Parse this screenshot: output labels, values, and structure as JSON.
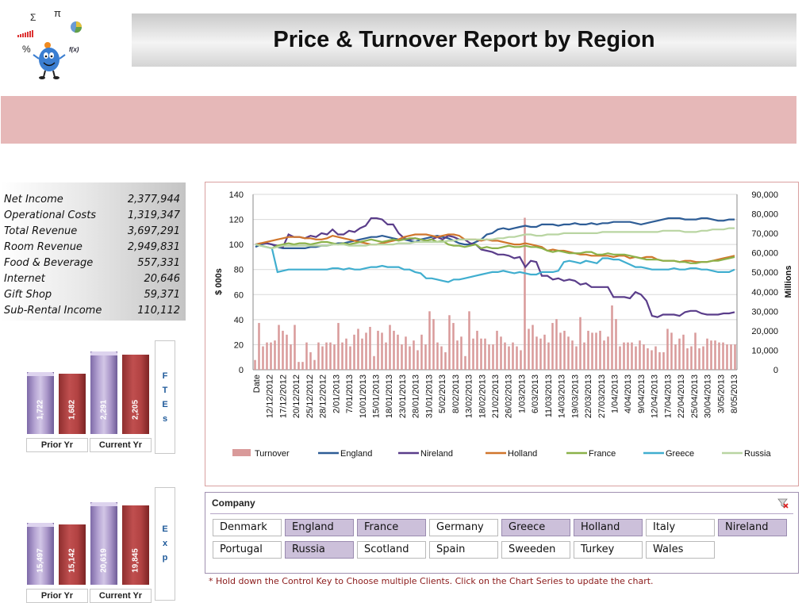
{
  "title": "Price & Turnover Report by Region",
  "logo": {
    "symbols": [
      "Σ",
      "π",
      "%",
      "f(x)"
    ]
  },
  "metrics": [
    {
      "label": "Net Income",
      "value": "2,377,944"
    },
    {
      "label": "Operational Costs",
      "value": "1,319,347"
    },
    {
      "label": "Total Revenue",
      "value": "3,697,291"
    },
    {
      "label": "Room Revenue",
      "value": "2,949,831"
    },
    {
      "label": "Food & Beverage",
      "value": "557,331"
    },
    {
      "label": "Internet",
      "value": "20,646"
    },
    {
      "label": "Gift Shop",
      "value": "59,371"
    },
    {
      "label": "Sub-Rental Income",
      "value": "110,112"
    }
  ],
  "ftes": {
    "side_letters": [
      "F",
      "T",
      "E",
      "s"
    ],
    "prior_label": "Prior Yr",
    "current_label": "Current Yr",
    "bars": [
      {
        "value": 1722,
        "label": "1,722",
        "color": "purple"
      },
      {
        "value": 1682,
        "label": "1,682",
        "color": "red"
      },
      {
        "value": 2291,
        "label": "2,291",
        "color": "purple"
      },
      {
        "value": 2205,
        "label": "2,205",
        "color": "red"
      }
    ]
  },
  "exp": {
    "side_letters": [
      "E",
      "x",
      "p"
    ],
    "prior_label": "Prior Yr",
    "current_label": "Current Yr",
    "bars": [
      {
        "value": 15497,
        "label": "15,497",
        "color": "purple"
      },
      {
        "value": 15142,
        "label": "15,142",
        "color": "red"
      },
      {
        "value": 20619,
        "label": "20,619",
        "color": "purple"
      },
      {
        "value": 19845,
        "label": "19,845",
        "color": "red"
      }
    ]
  },
  "chart_data": {
    "type": "line",
    "ylabel": "$ 000s",
    "y2label": "Millions",
    "ylim": [
      0,
      140
    ],
    "y_ticks": [
      0,
      20,
      40,
      60,
      80,
      100,
      120,
      140
    ],
    "y2lim": [
      0,
      90000
    ],
    "y2_ticks": [
      "0",
      "10,000",
      "20,000",
      "30,000",
      "40,000",
      "50,000",
      "60,000",
      "70,000",
      "80,000",
      "90,000"
    ],
    "x_labels": [
      "Date",
      "12/12/2012",
      "17/12/2012",
      "20/12/2012",
      "25/12/2012",
      "28/12/2012",
      "2/01/2013",
      "7/01/2013",
      "10/01/2013",
      "15/01/2013",
      "18/01/2013",
      "23/01/2013",
      "28/01/2013",
      "31/01/2013",
      "5/02/2013",
      "8/02/2013",
      "13/02/2013",
      "18/02/2013",
      "21/02/2013",
      "26/02/2013",
      "1/03/2013",
      "6/03/2013",
      "11/03/2013",
      "14/03/2013",
      "19/03/2013",
      "22/03/2013",
      "27/03/2013",
      "1/04/2013",
      "4/04/2013",
      "9/04/2013",
      "12/04/2013",
      "17/04/2013",
      "22/04/2013",
      "25/04/2013",
      "30/04/2013",
      "3/05/2013",
      "8/05/2013"
    ],
    "grid": true,
    "legend_position": "bottom",
    "series": [
      {
        "name": "Turnover",
        "type": "bar",
        "axis": "right",
        "color": "#d99a9a",
        "values": [
          5000,
          24000,
          12000,
          14000,
          14000,
          15000,
          23000,
          20000,
          18000,
          13000,
          23000,
          4000,
          4000,
          14000,
          9000,
          5000,
          14000,
          12000,
          14000,
          14000,
          13000,
          24000,
          14000,
          16000,
          12000,
          18000,
          21000,
          16000,
          19000,
          22000,
          7000,
          20000,
          19000,
          14000,
          23000,
          20000,
          18000,
          13000,
          17000,
          12000,
          15000,
          10000,
          18000,
          13000,
          30000,
          26000,
          14000,
          12000,
          9000,
          28000,
          24000,
          15000,
          17000,
          7000,
          30000,
          16000,
          20000,
          16000,
          16000,
          13000,
          13000,
          20000,
          17000,
          14000,
          12000,
          14000,
          12000,
          10000,
          78000,
          21000,
          23000,
          17000,
          16000,
          18000,
          14000,
          24000,
          26000,
          19000,
          20000,
          17000,
          15000,
          12000,
          27000,
          14000,
          20000,
          19000,
          19000,
          20000,
          15000,
          17000,
          33000,
          26000,
          12000,
          14000,
          14000,
          14000,
          12000,
          15000,
          13000,
          11000,
          10000,
          12000,
          9000,
          9000,
          21000,
          19000,
          13000,
          16000,
          18000,
          11000,
          12000,
          19000,
          11000,
          12000,
          16000,
          15000,
          15000,
          14000,
          14000,
          13000,
          13000,
          13000
        ]
      },
      {
        "name": "England",
        "type": "line",
        "axis": "left",
        "color": "#2e5d96",
        "values": [
          98,
          100,
          101,
          100,
          98,
          97,
          97,
          97,
          97,
          97,
          98,
          98,
          99,
          99,
          100,
          101,
          101,
          102,
          103,
          104,
          105,
          106,
          106,
          107,
          106,
          105,
          104,
          104,
          103,
          102,
          104,
          105,
          106,
          107,
          106,
          105,
          103,
          101,
          100,
          100,
          102,
          104,
          108,
          109,
          112,
          113,
          112,
          113,
          114,
          115,
          114,
          114,
          116,
          116,
          116,
          115,
          116,
          116,
          117,
          116,
          116,
          117,
          116,
          117,
          117,
          118,
          118,
          118,
          118,
          117,
          116,
          117,
          118,
          119,
          120,
          121,
          121,
          121,
          120,
          120,
          120,
          121,
          121,
          120,
          119,
          119,
          120,
          120
        ]
      },
      {
        "name": "Nireland",
        "type": "line",
        "axis": "left",
        "color": "#5a3d8a",
        "values": [
          100,
          101,
          101,
          100,
          99,
          98,
          108,
          106,
          106,
          105,
          107,
          106,
          109,
          108,
          112,
          108,
          108,
          111,
          110,
          113,
          115,
          121,
          121,
          120,
          116,
          116,
          109,
          105,
          104,
          105,
          104,
          103,
          104,
          106,
          104,
          107,
          106,
          104,
          104,
          101,
          100,
          96,
          95,
          94,
          92,
          92,
          91,
          89,
          90,
          82,
          87,
          86,
          75,
          75,
          72,
          73,
          71,
          72,
          71,
          68,
          69,
          66,
          66,
          66,
          66,
          58,
          58,
          58,
          57,
          62,
          60,
          55,
          43,
          42,
          44,
          44,
          44,
          43,
          46,
          47,
          47,
          45,
          44,
          44,
          44,
          45,
          45,
          46
        ]
      },
      {
        "name": "Holland",
        "type": "line",
        "axis": "left",
        "color": "#d0762c",
        "values": [
          100,
          101,
          102,
          103,
          104,
          105,
          106,
          106,
          106,
          105,
          105,
          104,
          104,
          105,
          107,
          106,
          105,
          104,
          103,
          102,
          101,
          100,
          100,
          101,
          102,
          103,
          104,
          106,
          107,
          108,
          108,
          108,
          107,
          106,
          107,
          108,
          108,
          107,
          104,
          104,
          104,
          103,
          104,
          103,
          103,
          102,
          101,
          100,
          100,
          101,
          100,
          99,
          98,
          95,
          96,
          95,
          95,
          94,
          93,
          92,
          92,
          91,
          91,
          91,
          91,
          90,
          91,
          91,
          89,
          90,
          89,
          90,
          90,
          88,
          87,
          87,
          87,
          86,
          87,
          87,
          86,
          86,
          86,
          87,
          88,
          89,
          90,
          91
        ]
      },
      {
        "name": "France",
        "type": "line",
        "axis": "left",
        "color": "#8bb24a",
        "values": [
          100,
          99,
          98,
          97,
          99,
          100,
          101,
          100,
          101,
          101,
          100,
          101,
          102,
          102,
          101,
          100,
          101,
          100,
          101,
          102,
          103,
          104,
          103,
          102,
          103,
          104,
          103,
          104,
          105,
          105,
          104,
          103,
          104,
          102,
          103,
          100,
          99,
          99,
          98,
          99,
          100,
          97,
          98,
          97,
          97,
          98,
          99,
          98,
          98,
          99,
          98,
          98,
          97,
          95,
          94,
          95,
          94,
          93,
          93,
          93,
          94,
          94,
          92,
          92,
          93,
          92,
          92,
          92,
          91,
          90,
          89,
          88,
          88,
          88,
          87,
          87,
          87,
          86,
          86,
          85,
          85,
          86,
          86,
          87,
          87,
          88,
          89,
          90
        ]
      },
      {
        "name": "Greece",
        "type": "line",
        "axis": "left",
        "color": "#40aecf",
        "values": [
          100,
          99,
          98,
          97,
          78,
          79,
          80,
          80,
          80,
          80,
          80,
          80,
          80,
          80,
          81,
          81,
          80,
          81,
          80,
          80,
          81,
          82,
          82,
          83,
          82,
          82,
          82,
          80,
          80,
          78,
          77,
          73,
          73,
          72,
          71,
          70,
          72,
          72,
          73,
          74,
          75,
          76,
          77,
          78,
          78,
          79,
          78,
          77,
          78,
          77,
          76,
          76,
          78,
          78,
          78,
          79,
          86,
          87,
          86,
          85,
          87,
          86,
          85,
          89,
          89,
          88,
          88,
          86,
          84,
          82,
          82,
          81,
          80,
          80,
          80,
          80,
          81,
          80,
          80,
          81,
          81,
          80,
          80,
          79,
          78,
          78,
          78,
          80
        ]
      },
      {
        "name": "Russia",
        "type": "line",
        "axis": "left",
        "color": "#b9d5a2",
        "values": [
          100,
          99,
          98,
          97,
          98,
          99,
          99,
          99,
          99,
          99,
          99,
          99,
          99,
          99,
          100,
          100,
          100,
          99,
          99,
          99,
          99,
          100,
          100,
          100,
          100,
          100,
          101,
          101,
          101,
          102,
          102,
          102,
          102,
          102,
          102,
          103,
          103,
          104,
          104,
          104,
          104,
          104,
          104,
          104,
          105,
          105,
          106,
          106,
          107,
          108,
          108,
          107,
          107,
          108,
          108,
          108,
          109,
          109,
          109,
          109,
          109,
          109,
          109,
          110,
          110,
          110,
          110,
          110,
          110,
          110,
          110,
          110,
          110,
          110,
          111,
          111,
          111,
          111,
          110,
          110,
          110,
          111,
          111,
          112,
          112,
          112,
          113,
          113
        ]
      }
    ]
  },
  "slicer": {
    "title": "Company",
    "items": [
      {
        "label": "Denmark",
        "selected": false
      },
      {
        "label": "England",
        "selected": true
      },
      {
        "label": "France",
        "selected": true
      },
      {
        "label": "Germany",
        "selected": false
      },
      {
        "label": "Greece",
        "selected": true
      },
      {
        "label": "Holland",
        "selected": true
      },
      {
        "label": "Italy",
        "selected": false
      },
      {
        "label": "Nireland",
        "selected": true
      },
      {
        "label": "Portugal",
        "selected": false
      },
      {
        "label": "Russia",
        "selected": true
      },
      {
        "label": "Scotland",
        "selected": false
      },
      {
        "label": "Spain",
        "selected": false
      },
      {
        "label": "Sweeden",
        "selected": false
      },
      {
        "label": "Turkey",
        "selected": false
      },
      {
        "label": "Wales",
        "selected": false
      }
    ]
  },
  "footnote": "* Hold down the Control Key to Choose multiple Clients.  Click on the Chart Series to update the chart."
}
